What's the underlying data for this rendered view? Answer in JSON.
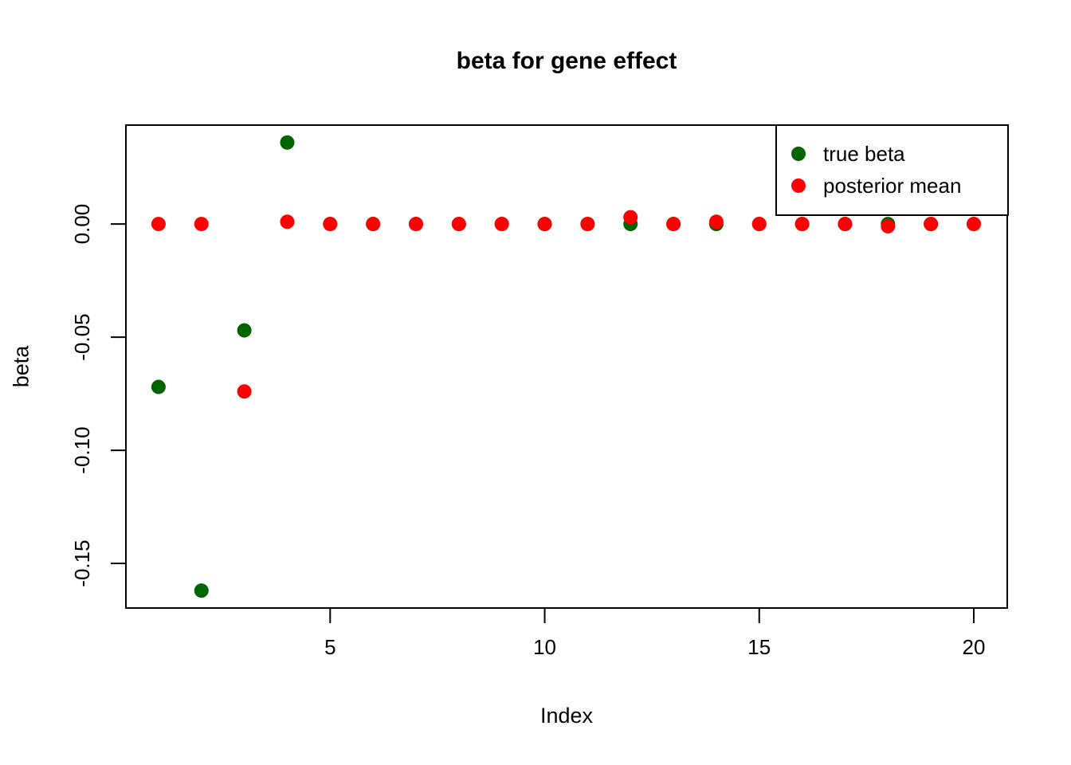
{
  "title": "beta for gene effect",
  "colors": {
    "true_beta": "#006400",
    "posterior_mean": "#FF0000",
    "axis": "#000000",
    "background": "#FFFFFF"
  },
  "legend": {
    "items": [
      {
        "label": "true beta",
        "color_key": "true_beta"
      },
      {
        "label": "posterior mean",
        "color_key": "posterior_mean"
      }
    ]
  },
  "chart_data": {
    "type": "scatter",
    "title": "beta for gene effect",
    "xlabel": "Index",
    "ylabel": "beta",
    "x": [
      1,
      2,
      3,
      4,
      5,
      6,
      7,
      8,
      9,
      10,
      11,
      12,
      13,
      14,
      15,
      16,
      17,
      18,
      19,
      20
    ],
    "series": [
      {
        "name": "true beta",
        "color": "#006400",
        "values": [
          -0.072,
          -0.162,
          -0.047,
          0.036,
          0.0,
          0.0,
          0.0,
          0.0,
          0.0,
          0.0,
          0.0,
          0.0,
          0.0,
          0.0,
          0.0,
          0.0,
          0.0,
          0.0,
          0.0,
          0.0
        ]
      },
      {
        "name": "posterior mean",
        "color": "#FF0000",
        "values": [
          0.0,
          0.0,
          -0.074,
          0.001,
          0.0,
          0.0,
          0.0,
          0.0,
          0.0,
          0.0,
          0.0,
          0.003,
          0.0,
          0.001,
          0.0,
          0.0,
          0.0,
          -0.001,
          0.0,
          0.0
        ]
      }
    ],
    "xticks": [
      5,
      10,
      15,
      20
    ],
    "xtick_labels": [
      "5",
      "10",
      "15",
      "20"
    ],
    "yticks": [
      0.0,
      -0.05,
      -0.1,
      -0.15
    ],
    "ytick_labels": [
      "0.00",
      "-0.05",
      "-0.10",
      "-0.15"
    ],
    "xlim": [
      0.24,
      20.78
    ],
    "ylim": [
      -0.1697,
      0.0437
    ],
    "grid": false,
    "legend_position": "top-right",
    "point_radius": 9
  }
}
